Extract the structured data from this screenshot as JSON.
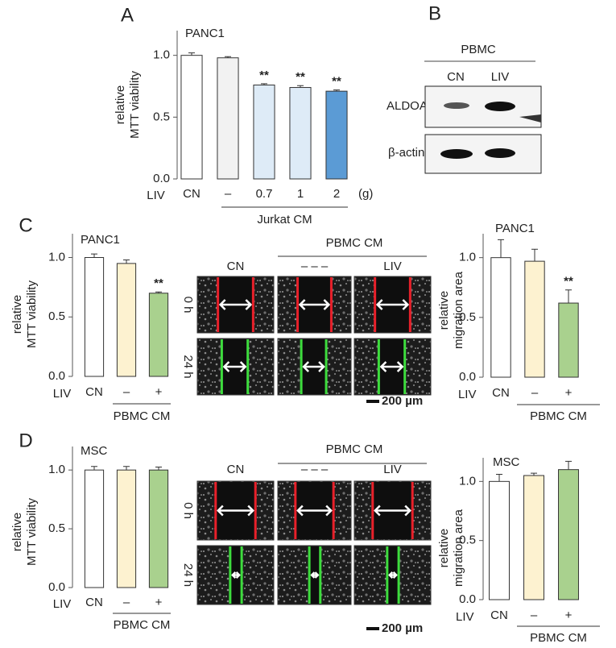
{
  "panel_labels": [
    "A",
    "B",
    "C",
    "D"
  ],
  "chart_data": [
    {
      "type": "bar",
      "title": "PANC1",
      "ylabel": [
        "relative",
        "MTT viability"
      ],
      "x_row_label": "LIV",
      "x_unit": "(g)",
      "group_label": "Jurkat CM",
      "categories": [
        "CN",
        "–",
        "0.7",
        "1",
        "2"
      ],
      "values": [
        1.0,
        0.98,
        0.76,
        0.74,
        0.71
      ],
      "errors": [
        0.02,
        0.01,
        0.01,
        0.015,
        0.01
      ],
      "annotations": [
        null,
        null,
        "**",
        "**",
        "**"
      ],
      "colors": [
        "#ffffff",
        "#f2f2f2",
        "#deebf7",
        "#deebf7",
        "#5b9bd5"
      ],
      "ylim": [
        0,
        1.2
      ],
      "yticks": [
        {
          "value": 0,
          "label": "0.0"
        },
        0.5,
        {
          "value": 1,
          "label": "1.0"
        }
      ]
    },
    {
      "type": "bar",
      "title": "PANC1",
      "ylabel": [
        "relative",
        "MTT viability"
      ],
      "x_row_label": "LIV",
      "group_label": "PBMC CM",
      "categories": [
        "CN",
        "–",
        "+"
      ],
      "values": [
        1.0,
        0.95,
        0.7
      ],
      "errors": [
        0.03,
        0.03,
        0.01
      ],
      "annotations": [
        null,
        null,
        "**"
      ],
      "colors": [
        "#ffffff",
        "#fdf2d0",
        "#a9d18e"
      ],
      "ylim": [
        0,
        1.2
      ],
      "yticks": [
        {
          "value": 0,
          "label": "0.0"
        },
        0.5,
        {
          "value": 1,
          "label": "1.0"
        }
      ]
    },
    {
      "type": "bar",
      "title": "PANC1",
      "ylabel": [
        "relative",
        "migration area"
      ],
      "x_row_label": "LIV",
      "group_label": "PBMC CM",
      "categories": [
        "CN",
        "–",
        "+"
      ],
      "values": [
        1.0,
        0.97,
        0.62
      ],
      "errors": [
        0.15,
        0.1,
        0.11
      ],
      "annotations": [
        null,
        null,
        "**"
      ],
      "colors": [
        "#ffffff",
        "#fdf2d0",
        "#a9d18e"
      ],
      "ylim": [
        0,
        1.2
      ],
      "yticks": [
        {
          "value": 0,
          "label": "0.0"
        },
        0.5,
        {
          "value": 1,
          "label": "1.0"
        }
      ]
    },
    {
      "type": "bar",
      "title": "MSC",
      "ylabel": [
        "relative",
        "MTT viability"
      ],
      "x_row_label": "LIV",
      "group_label": "PBMC CM",
      "categories": [
        "CN",
        "–",
        "+"
      ],
      "values": [
        1.0,
        1.0,
        1.0
      ],
      "errors": [
        0.03,
        0.03,
        0.025
      ],
      "annotations": [
        null,
        null,
        null
      ],
      "colors": [
        "#ffffff",
        "#fdf2d0",
        "#a9d18e"
      ],
      "ylim": [
        0,
        1.2
      ],
      "yticks": [
        {
          "value": 0,
          "label": "0.0"
        },
        0.5,
        {
          "value": 1,
          "label": "1.0"
        }
      ]
    },
    {
      "type": "bar",
      "title": "MSC",
      "ylabel": [
        "relative",
        "migration area"
      ],
      "x_row_label": "LIV",
      "group_label": "PBMC CM",
      "categories": [
        "CN",
        "–",
        "+"
      ],
      "values": [
        1.0,
        1.05,
        1.1
      ],
      "errors": [
        0.06,
        0.02,
        0.07
      ],
      "annotations": [
        null,
        null,
        null
      ],
      "colors": [
        "#ffffff",
        "#fdf2d0",
        "#a9d18e"
      ],
      "ylim": [
        0,
        1.2
      ],
      "yticks": [
        {
          "value": 0,
          "label": "0.0"
        },
        0.5,
        {
          "value": 1,
          "label": "1.0"
        }
      ]
    }
  ],
  "blot": {
    "header": "PBMC",
    "columns": [
      "CN",
      "LIV"
    ],
    "rows": [
      "ALDOA",
      "β-actin"
    ]
  },
  "migration_images": [
    {
      "header": "PBMC CM",
      "columns": [
        "CN",
        "– – –",
        "LIV"
      ],
      "rows": [
        "0 h",
        "24 h"
      ],
      "scale_bar": "200 µm"
    },
    {
      "header": "PBMC CM",
      "columns": [
        "CN",
        "– – –",
        "LIV"
      ],
      "rows": [
        "0 h",
        "24 h"
      ],
      "scale_bar": "200 µm"
    }
  ]
}
